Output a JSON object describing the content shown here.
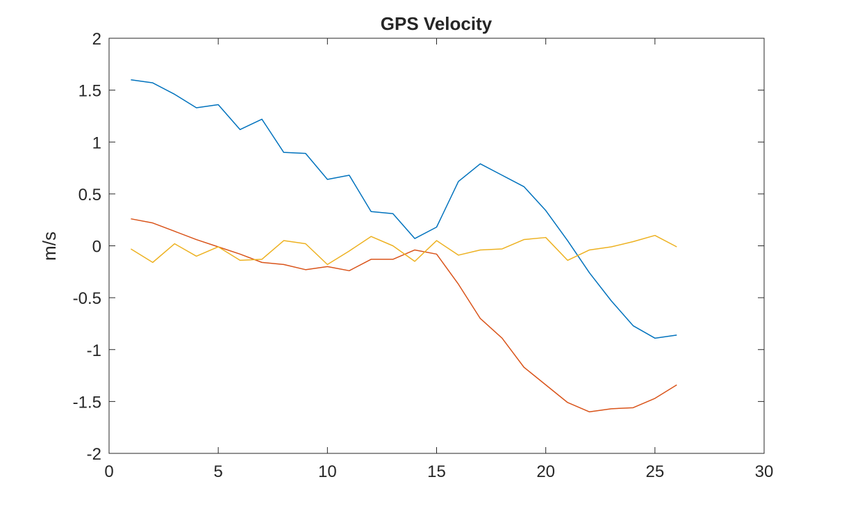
{
  "chart_data": {
    "type": "line",
    "title": "GPS Velocity",
    "xlabel": "",
    "ylabel": "m/s",
    "xlim": [
      0,
      30
    ],
    "ylim": [
      -2,
      2
    ],
    "xticks": [
      0,
      5,
      10,
      15,
      20,
      25,
      30
    ],
    "yticks": [
      -2,
      -1.5,
      -1,
      -0.5,
      0,
      0.5,
      1,
      1.5,
      2
    ],
    "xtick_labels": [
      "0",
      "5",
      "10",
      "15",
      "20",
      "25",
      "30"
    ],
    "ytick_labels": [
      "-2",
      "-1.5",
      "-1",
      "-0.5",
      "0",
      "0.5",
      "1",
      "1.5",
      "2"
    ],
    "grid": false,
    "box": true,
    "x": [
      1,
      2,
      3,
      4,
      5,
      6,
      7,
      8,
      9,
      10,
      11,
      12,
      13,
      14,
      15,
      16,
      17,
      18,
      19,
      20,
      21,
      22,
      23,
      24,
      25,
      26
    ],
    "series": [
      {
        "color": "#0072BD",
        "values": [
          1.6,
          1.57,
          1.46,
          1.33,
          1.36,
          1.12,
          1.22,
          0.9,
          0.89,
          0.64,
          0.68,
          0.33,
          0.31,
          0.07,
          0.18,
          0.62,
          0.79,
          0.68,
          0.57,
          0.34,
          0.05,
          -0.26,
          -0.53,
          -0.77,
          -0.89,
          -0.86
        ]
      },
      {
        "color": "#D95319",
        "values": [
          0.26,
          0.22,
          0.14,
          0.06,
          -0.01,
          -0.08,
          -0.16,
          -0.18,
          -0.23,
          -0.2,
          -0.24,
          -0.13,
          -0.13,
          -0.04,
          -0.08,
          -0.37,
          -0.7,
          -0.89,
          -1.17,
          -1.34,
          -1.51,
          -1.6,
          -1.57,
          -1.56,
          -1.47,
          -1.34
        ]
      },
      {
        "color": "#EDB120",
        "values": [
          -0.03,
          -0.16,
          0.02,
          -0.1,
          -0.01,
          -0.14,
          -0.13,
          0.05,
          0.02,
          -0.18,
          -0.05,
          0.09,
          0.0,
          -0.15,
          0.05,
          -0.09,
          -0.04,
          -0.03,
          0.06,
          0.08,
          -0.14,
          -0.04,
          -0.01,
          0.04,
          0.1,
          -0.01
        ]
      }
    ]
  }
}
